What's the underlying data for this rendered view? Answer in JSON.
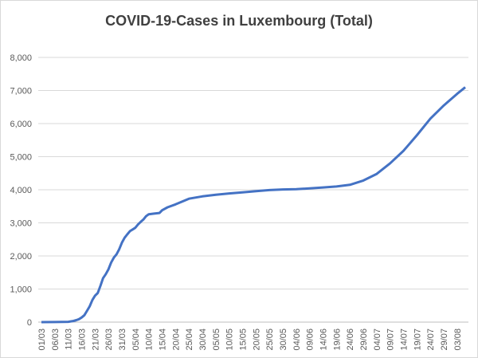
{
  "chart_data": {
    "type": "line",
    "title": "COVID-19-Cases in Luxembourg (Total)",
    "xlabel": "",
    "ylabel": "",
    "ylim": [
      0,
      8000
    ],
    "yticks": [
      "0",
      "1,000",
      "2,000",
      "3,000",
      "4,000",
      "5,000",
      "6,000",
      "7,000",
      "8,000"
    ],
    "grid": true,
    "legend": "none",
    "series_color": "#4472C4",
    "x_tick_labels": [
      "01/03",
      "06/03",
      "11/03",
      "16/03",
      "21/03",
      "26/03",
      "31/03",
      "05/04",
      "10/04",
      "15/04",
      "20/04",
      "25/04",
      "30/04",
      "05/05",
      "10/05",
      "15/05",
      "20/05",
      "25/05",
      "30/05",
      "04/06",
      "09/06",
      "14/06",
      "19/06",
      "24/06",
      "29/06",
      "04/07",
      "09/07",
      "14/07",
      "19/07",
      "24/07",
      "29/07",
      "03/08"
    ],
    "series": [
      {
        "x": [
          "01/03",
          "06/03",
          "11/03",
          "13/03",
          "14/03",
          "15/03",
          "16/03",
          "17/03",
          "18/03",
          "19/03",
          "20/03",
          "21/03",
          "22/03",
          "23/03",
          "24/03",
          "25/03",
          "26/03",
          "27/03",
          "28/03",
          "29/03",
          "30/03",
          "31/03",
          "01/04",
          "02/04",
          "03/04",
          "04/04",
          "05/04",
          "06/04",
          "07/04",
          "08/04",
          "09/04",
          "10/04",
          "12/04",
          "14/04",
          "15/04",
          "17/04",
          "20/04",
          "25/04",
          "30/04",
          "05/05",
          "10/05",
          "15/05",
          "20/05",
          "25/05",
          "30/05",
          "04/06",
          "09/06",
          "14/06",
          "19/06",
          "24/06",
          "29/06",
          "04/07",
          "09/07",
          "14/07",
          "19/07",
          "24/07",
          "29/07",
          "03/08",
          "06/08"
        ],
        "values": [
          0,
          3,
          10,
          35,
          60,
          90,
          140,
          210,
          340,
          480,
          670,
          800,
          880,
          1100,
          1330,
          1450,
          1600,
          1800,
          1950,
          2050,
          2200,
          2400,
          2550,
          2650,
          2750,
          2800,
          2850,
          2950,
          3030,
          3100,
          3200,
          3260,
          3280,
          3300,
          3380,
          3470,
          3560,
          3730,
          3800,
          3850,
          3890,
          3920,
          3960,
          3990,
          4010,
          4020,
          4040,
          4070,
          4100,
          4150,
          4280,
          4480,
          4800,
          5180,
          5650,
          6150,
          6550,
          6900,
          7100
        ]
      }
    ]
  }
}
